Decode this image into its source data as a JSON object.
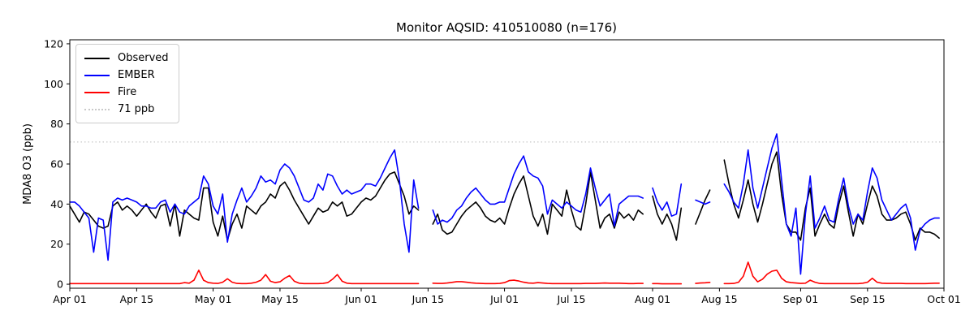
{
  "title": "Monitor AQSID: 410510080 (n=176)",
  "ylabel": "MDA8 O3 (ppb)",
  "legend": {
    "items": [
      {
        "label": "Observed",
        "color": "#000000",
        "dash": "solid"
      },
      {
        "label": "EMBER",
        "color": "#0000ff",
        "dash": "solid"
      },
      {
        "label": "Fire",
        "color": "#ff0000",
        "dash": "solid"
      },
      {
        "label": "71 ppb",
        "color": "#c9c9c9",
        "dash": "dotted"
      }
    ]
  },
  "chart_data": {
    "type": "line",
    "title": "Monitor AQSID: 410510080 (n=176)",
    "ylabel": "MDA8 O3 (ppb)",
    "xlabel": "",
    "ylim": [
      -2,
      122
    ],
    "yticks": [
      0,
      20,
      40,
      60,
      80,
      100,
      120
    ],
    "x_unit": "daily values, day 0 = Apr 01 through day 182 = Sep 30; null = missing day",
    "n_observed": 176,
    "grid": false,
    "legend_position": "upper left",
    "xticks": [
      {
        "day": 0,
        "label": "Apr 01"
      },
      {
        "day": 14,
        "label": "Apr 15"
      },
      {
        "day": 30,
        "label": "May 01"
      },
      {
        "day": 44,
        "label": "May 15"
      },
      {
        "day": 61,
        "label": "Jun 01"
      },
      {
        "day": 75,
        "label": "Jun 15"
      },
      {
        "day": 91,
        "label": "Jul 01"
      },
      {
        "day": 105,
        "label": "Jul 15"
      },
      {
        "day": 122,
        "label": "Aug 01"
      },
      {
        "day": 136,
        "label": "Aug 15"
      },
      {
        "day": 153,
        "label": "Sep 01"
      },
      {
        "day": 167,
        "label": "Sep 15"
      },
      {
        "day": 183,
        "label": "Oct 01"
      }
    ],
    "threshold": {
      "value": 71,
      "label": "71 ppb",
      "color": "#c9c9c9",
      "style": "dotted"
    },
    "series": [
      {
        "name": "Observed",
        "color": "#000000",
        "values": [
          39,
          35,
          31,
          36,
          35,
          32,
          29,
          28,
          29,
          39,
          41,
          37,
          39,
          37,
          34,
          37,
          40,
          36,
          33,
          39,
          40,
          29,
          40,
          24,
          37,
          35,
          33,
          32,
          48,
          48,
          31,
          24,
          34,
          22,
          30,
          35,
          28,
          39,
          37,
          35,
          39,
          41,
          45,
          43,
          49,
          51,
          47,
          42,
          38,
          34,
          30,
          34,
          38,
          36,
          37,
          41,
          39,
          41,
          34,
          35,
          38,
          41,
          43,
          42,
          44,
          48,
          52,
          55,
          56,
          50,
          44,
          35,
          39,
          37,
          null,
          null,
          30,
          35,
          27,
          25,
          26,
          30,
          34,
          37,
          39,
          41,
          38,
          34,
          32,
          31,
          33,
          30,
          38,
          45,
          50,
          54,
          44,
          34,
          29,
          35,
          25,
          40,
          37,
          34,
          47,
          37,
          29,
          27,
          40,
          56,
          42,
          28,
          33,
          35,
          28,
          36,
          33,
          35,
          32,
          37,
          35,
          null,
          44,
          35,
          30,
          35,
          30,
          22,
          38,
          null,
          null,
          30,
          36,
          42,
          47,
          null,
          null,
          62,
          50,
          40,
          33,
          42,
          52,
          40,
          31,
          40,
          50,
          60,
          66,
          45,
          30,
          26,
          26,
          22,
          38,
          48,
          24,
          30,
          35,
          30,
          28,
          40,
          49,
          36,
          24,
          35,
          30,
          40,
          49,
          44,
          35,
          32,
          32,
          33,
          35,
          36,
          30,
          22,
          28,
          26,
          26,
          25,
          23
        ]
      },
      {
        "name": "EMBER",
        "color": "#0000ff",
        "values": [
          41,
          41,
          39,
          36,
          33,
          16,
          33,
          32,
          12,
          41,
          43,
          42,
          43,
          42,
          41,
          39,
          39,
          38,
          38,
          41,
          42,
          36,
          40,
          36,
          35,
          39,
          41,
          43,
          54,
          50,
          39,
          35,
          45,
          21,
          35,
          42,
          48,
          41,
          44,
          48,
          54,
          51,
          52,
          50,
          57,
          60,
          58,
          54,
          48,
          42,
          41,
          43,
          50,
          47,
          55,
          54,
          49,
          45,
          47,
          45,
          46,
          47,
          50,
          50,
          49,
          53,
          58,
          63,
          67,
          52,
          30,
          16,
          52,
          38,
          null,
          null,
          37,
          30,
          32,
          31,
          33,
          37,
          39,
          43,
          46,
          48,
          45,
          42,
          40,
          40,
          41,
          41,
          48,
          55,
          60,
          64,
          56,
          54,
          53,
          49,
          35,
          42,
          40,
          38,
          41,
          39,
          37,
          36,
          45,
          58,
          48,
          39,
          42,
          45,
          29,
          40,
          42,
          44,
          44,
          44,
          43,
          null,
          48,
          41,
          37,
          41,
          34,
          35,
          50,
          null,
          null,
          42,
          41,
          40,
          41,
          null,
          null,
          50,
          46,
          41,
          38,
          50,
          67,
          48,
          38,
          48,
          58,
          68,
          75,
          52,
          30,
          24,
          38,
          5,
          35,
          54,
          28,
          33,
          39,
          32,
          31,
          43,
          53,
          39,
          30,
          35,
          32,
          46,
          58,
          53,
          42,
          37,
          32,
          35,
          38,
          40,
          33,
          17,
          27,
          30,
          32,
          33,
          33
        ]
      },
      {
        "name": "Fire",
        "color": "#ff0000",
        "values": [
          0.3,
          0.3,
          0.3,
          0.3,
          0.3,
          0.3,
          0.3,
          0.3,
          0.3,
          0.3,
          0.3,
          0.3,
          0.3,
          0.3,
          0.3,
          0.3,
          0.3,
          0.3,
          0.3,
          0.3,
          0.3,
          0.3,
          0.3,
          0.3,
          0.8,
          0.5,
          2,
          7,
          2,
          0.8,
          0.5,
          0.4,
          1,
          2.7,
          1,
          0.4,
          0.3,
          0.3,
          0.5,
          1,
          2,
          4.8,
          1.5,
          0.8,
          1.2,
          3,
          4.3,
          1.5,
          0.5,
          0.3,
          0.3,
          0.3,
          0.3,
          0.4,
          0.8,
          2.5,
          4.8,
          1.5,
          0.5,
          0.3,
          0.3,
          0.3,
          0.3,
          0.3,
          0.3,
          0.3,
          0.3,
          0.3,
          0.3,
          0.3,
          0.3,
          0.3,
          0.3,
          0.3,
          null,
          null,
          0.5,
          0.4,
          0.4,
          0.6,
          0.9,
          1.3,
          1.3,
          1,
          0.7,
          0.5,
          0.4,
          0.3,
          0.3,
          0.3,
          0.4,
          0.8,
          1.8,
          2,
          1.6,
          1,
          0.6,
          0.5,
          0.8,
          0.6,
          0.4,
          0.3,
          0.3,
          0.3,
          0.3,
          0.3,
          0.3,
          0.3,
          0.4,
          0.4,
          0.4,
          0.5,
          0.6,
          0.5,
          0.5,
          0.5,
          0.4,
          0.3,
          0.3,
          0.4,
          0.4,
          null,
          0.3,
          0.3,
          0.2,
          0.2,
          0.2,
          0.2,
          0.2,
          null,
          null,
          0.4,
          0.6,
          0.7,
          0.9,
          null,
          null,
          0.3,
          0.3,
          0.4,
          1,
          4,
          11,
          4,
          1.2,
          2.5,
          5,
          6.5,
          7,
          3,
          1.2,
          0.8,
          0.6,
          0.4,
          0.5,
          2,
          1,
          0.4,
          0.3,
          0.3,
          0.3,
          0.3,
          0.3,
          0.3,
          0.3,
          0.3,
          0.5,
          1,
          3,
          1,
          0.5,
          0.4,
          0.4,
          0.4,
          0.4,
          0.3,
          0.3,
          0.3,
          0.3,
          0.3,
          0.4,
          0.5,
          0.5
        ]
      }
    ]
  }
}
